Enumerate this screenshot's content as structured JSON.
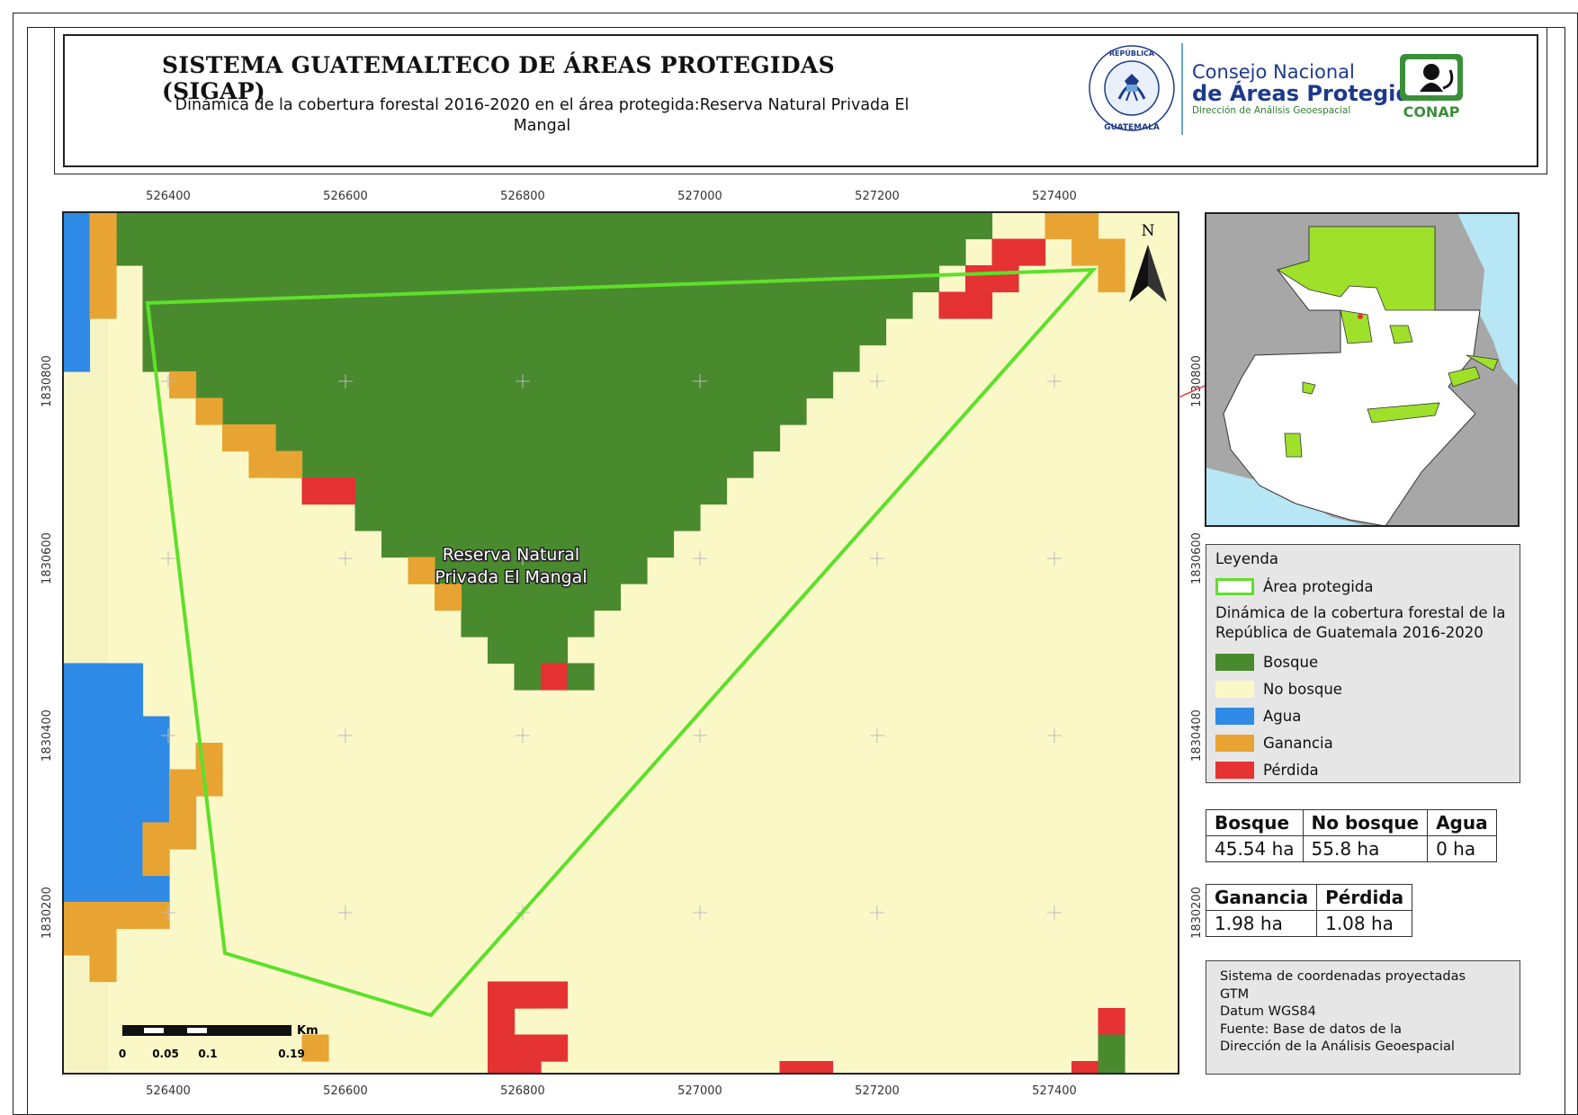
{
  "header": {
    "title": "SISTEMA GUATEMALTECO DE ÁREAS PROTEGIDAS  (SIGAP)",
    "subtitle": "Dinámica de la cobertura forestal 2016-2020 en el área protegida:Reserva Natural Privada El Mangal"
  },
  "logos": {
    "seal_text": "GOBIERNO DE LA REPÚBLICA · GUATEMALA",
    "org_line1": "Consejo Nacional",
    "org_line2": "de Áreas Protegidas",
    "org_line3": "Dirección de Análisis Geoespacial",
    "badge_text": "CONAP"
  },
  "map": {
    "x_ticks": [
      "526400",
      "526600",
      "526800",
      "527000",
      "527200",
      "527400"
    ],
    "y_ticks": [
      "1830800",
      "1830600",
      "1830400",
      "1830200"
    ],
    "north_label": "N",
    "area_label_line1": "Reserva Natural",
    "area_label_line2": "Privada El Mangal",
    "scale_unit": "Km",
    "scale_labels": [
      "0",
      "0.05",
      "0.1",
      "0.19"
    ],
    "colors": {
      "bosque": "#4a8a2e",
      "no_bosque": "#fbf8c8",
      "agua": "#2f8ae6",
      "ganancia": "#e8a432",
      "perdida": "#e53232",
      "boundary": "#5de02a"
    }
  },
  "legend": {
    "title": "Leyenda",
    "area_label": "Área protegida",
    "dynamics_title": "Dinámica de la cobertura forestal de la República de Guatemala 2016-2020",
    "classes": [
      {
        "label": "Bosque",
        "color": "#4a8a2e"
      },
      {
        "label": "No bosque",
        "color": "#fbf8c8"
      },
      {
        "label": "Agua",
        "color": "#2f8ae6"
      },
      {
        "label": "Ganancia",
        "color": "#e8a432"
      },
      {
        "label": "Pérdida",
        "color": "#e53232"
      }
    ]
  },
  "stats1": {
    "headers": [
      "Bosque",
      "No bosque",
      "Agua"
    ],
    "values": [
      "45.54 ha",
      "55.8 ha",
      "0 ha"
    ]
  },
  "stats2": {
    "headers": [
      "Ganancia",
      "Pérdida"
    ],
    "values": [
      "1.98 ha",
      "1.08 ha"
    ]
  },
  "crs": {
    "line1": "Sistema de coordenadas proyectadas",
    "line2": "GTM",
    "line3": "Datum WGS84",
    "line4": "Fuente: Base de datos de la",
    "line5": "Dirección de la Análisis Geoespacial"
  }
}
